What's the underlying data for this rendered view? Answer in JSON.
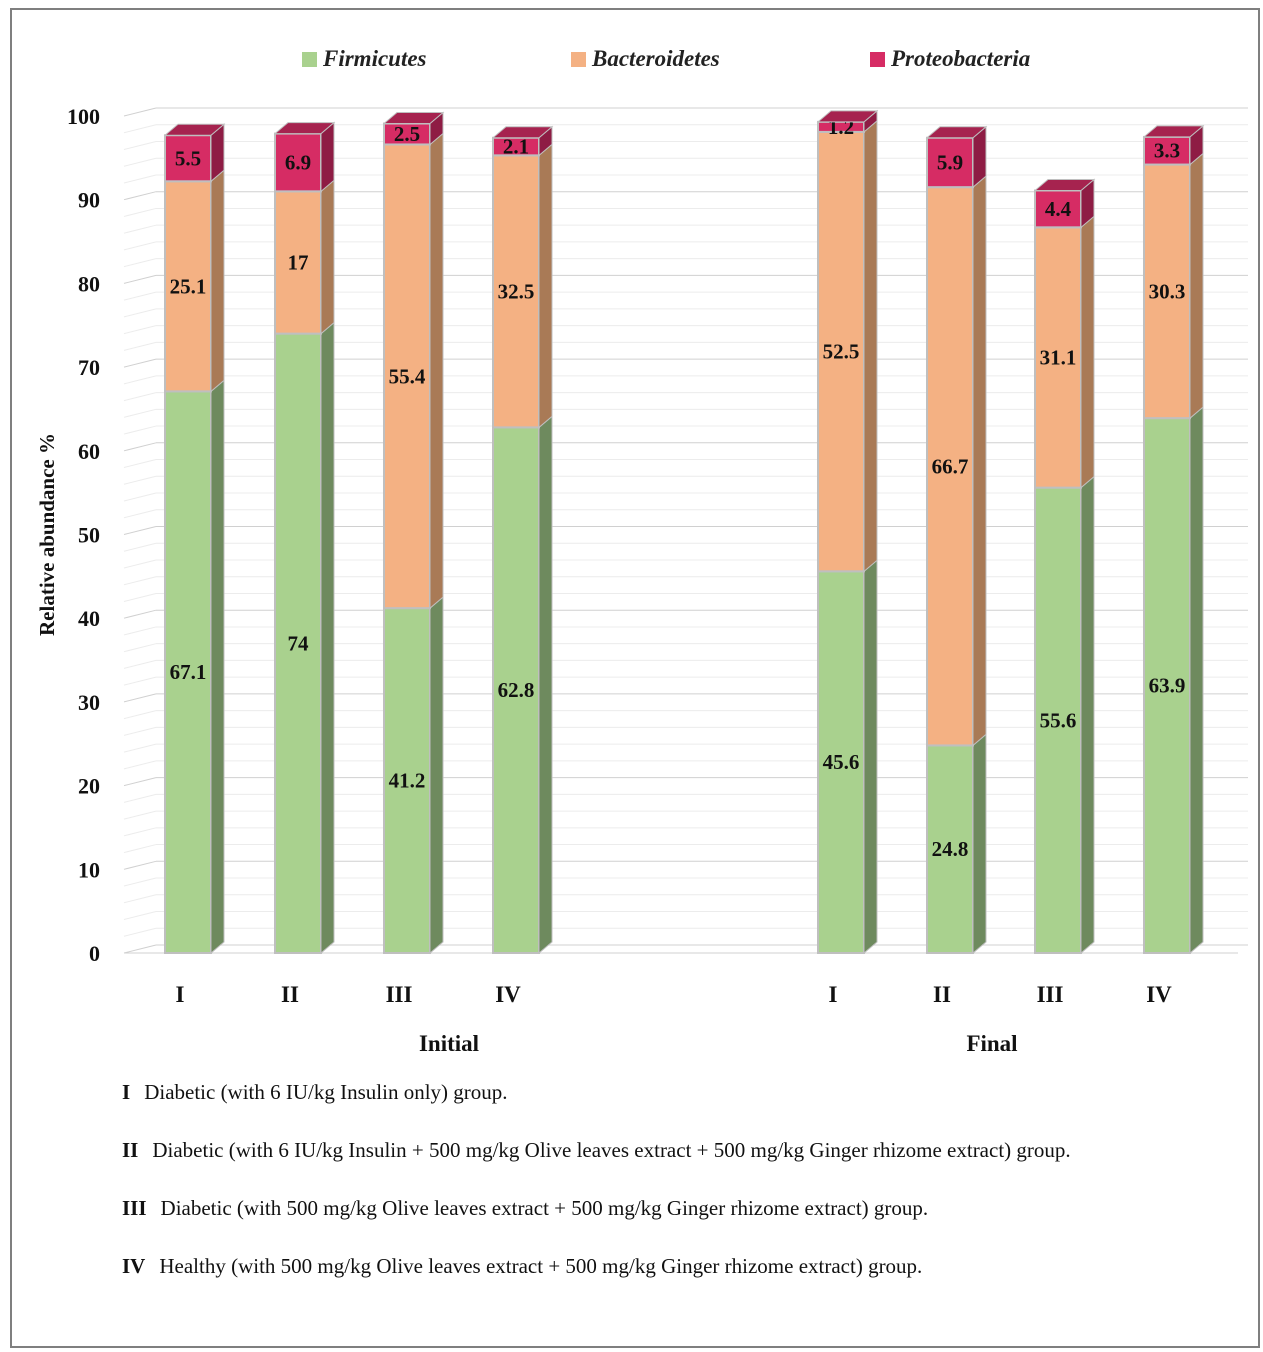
{
  "colors": {
    "firmicutes": "#a9d18e",
    "bacteroidetes": "#f4b183",
    "proteobacteria": "#d62c64"
  },
  "legend": [
    {
      "label": "Firmicutes",
      "color": "#a9d18e"
    },
    {
      "label": "Bacteroidetes",
      "color": "#f4b183"
    },
    {
      "label": "Proteobacteria",
      "color": "#d62c64"
    }
  ],
  "chart_data": {
    "type": "bar",
    "stacked": true,
    "three_d": true,
    "ylabel": "Relative abundance  %",
    "ylim": [
      0,
      100
    ],
    "yticks": [
      0,
      10,
      20,
      30,
      40,
      50,
      60,
      70,
      80,
      90,
      100
    ],
    "grid": true,
    "legend_position": "top",
    "groups": [
      "Initial",
      "Final"
    ],
    "categories": [
      "I",
      "II",
      "III",
      "IV",
      "I",
      "II",
      "III",
      "IV"
    ],
    "series": [
      {
        "name": "Firmicutes",
        "values": [
          67.1,
          74,
          41.2,
          62.8,
          45.6,
          24.8,
          55.6,
          63.9
        ]
      },
      {
        "name": "Bacteroidetes",
        "values": [
          25.1,
          17,
          55.4,
          32.5,
          52.5,
          66.7,
          31.1,
          30.3
        ]
      },
      {
        "name": "Proteobacteria",
        "values": [
          5.5,
          6.9,
          2.5,
          2.1,
          1.2,
          5.9,
          4.4,
          3.3
        ]
      }
    ],
    "data_labels": [
      [
        "67.1",
        "74",
        "41.2",
        "62.8",
        "45.6",
        "24.8",
        "55.6",
        "63.9"
      ],
      [
        "25.1",
        "17",
        "55.4",
        "32.5",
        "52.5",
        "66.7",
        "31.1",
        "30.3"
      ],
      [
        "5.5",
        "6.9",
        "2.5",
        "2.1",
        "1.2",
        "5.9",
        "4.4",
        "3.3"
      ]
    ]
  },
  "footnotes": [
    {
      "code": "I",
      "text": "Diabetic (with 6 IU/kg Insulin only) group."
    },
    {
      "code": "II",
      "text": "Diabetic (with 6 IU/kg Insulin + 500 mg/kg Olive leaves extract + 500 mg/kg Ginger rhizome extract) group."
    },
    {
      "code": "III",
      "text": "Diabetic (with 500 mg/kg Olive leaves extract + 500 mg/kg Ginger rhizome extract) group."
    },
    {
      "code": "IV",
      "text": "Healthy (with 500 mg/kg Olive leaves extract + 500 mg/kg Ginger rhizome extract) group."
    }
  ]
}
